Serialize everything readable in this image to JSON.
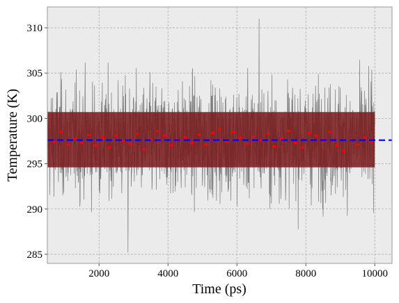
{
  "chart_data": {
    "type": "line",
    "title": "",
    "xlabel": "Time (ps)",
    "ylabel": "Temperature (K)",
    "xlim": [
      500,
      10500
    ],
    "ylim": [
      284,
      312.3
    ],
    "xticks": [
      2000,
      4000,
      6000,
      8000,
      10000
    ],
    "yticks": [
      285,
      290,
      295,
      300,
      305,
      310
    ],
    "grid": true,
    "raw_series": {
      "x_range": [
        500,
        10000
      ],
      "mean": 297.6,
      "std": 3.1,
      "min": 285.2,
      "max": 311.0
    },
    "std_band": {
      "lower": 294.6,
      "upper": 300.7
    },
    "running_average": {
      "x": [
        700,
        900,
        1100,
        1300,
        1500,
        1700,
        1900,
        2100,
        2300,
        2500,
        2700,
        2900,
        3100,
        3300,
        3500,
        3700,
        3900,
        4100,
        4300,
        4500,
        4700,
        4900,
        5100,
        5300,
        5500,
        5700,
        5900,
        6100,
        6300,
        6500,
        6700,
        6900,
        7100,
        7300,
        7500,
        7700,
        7900,
        8100,
        8300,
        8500,
        8700,
        8900,
        9100,
        9300,
        9500,
        9700,
        9900
      ],
      "y": [
        297.4,
        298.5,
        297.1,
        297.8,
        297.3,
        298.2,
        297.0,
        297.9,
        296.8,
        298.1,
        297.5,
        297.2,
        298.3,
        296.6,
        297.7,
        298.6,
        298.1,
        297.0,
        297.6,
        297.9,
        297.3,
        298.2,
        297.1,
        298.4,
        298.8,
        297.4,
        298.5,
        297.9,
        297.2,
        298.0,
        297.6,
        298.3,
        296.9,
        297.8,
        298.6,
        297.3,
        296.8,
        298.4,
        298.1,
        297.5,
        298.5,
        297.0,
        296.4,
        297.7,
        297.1,
        297.9,
        297.4
      ]
    },
    "mean_line": {
      "y": 297.6
    },
    "colors": {
      "raw": "#777777",
      "band": "#7a1f1f",
      "running_average": "#ff0000",
      "mean": "#0000ff",
      "plot_background": "#ebebeb",
      "grid": "#b0b0b0"
    }
  }
}
